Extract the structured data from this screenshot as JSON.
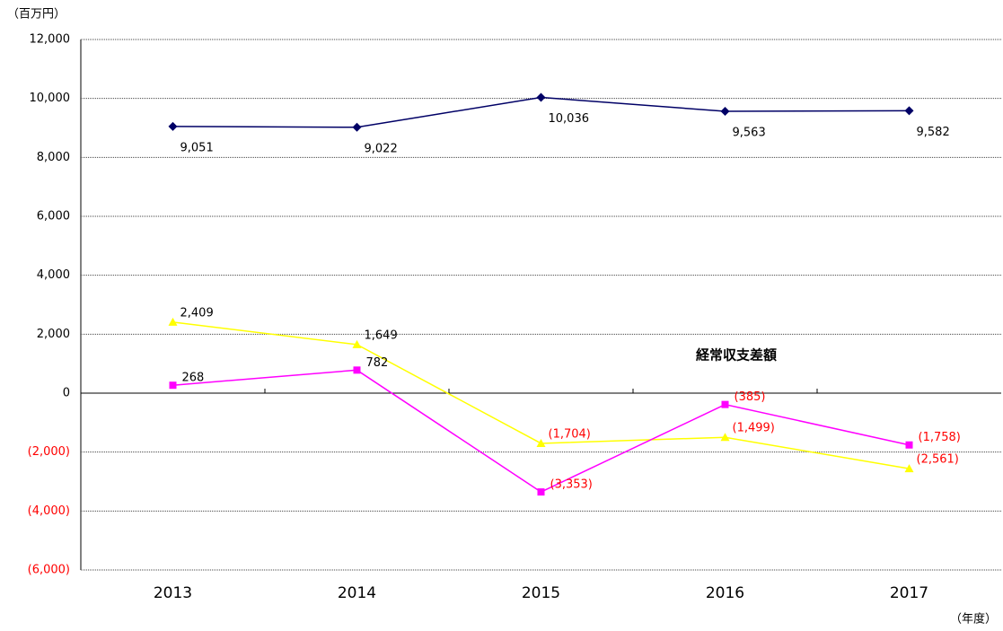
{
  "chart_data": {
    "type": "line",
    "unit_label": "（百万円）",
    "x_axis_label": "（年度）",
    "annotation": "経常収支差額",
    "categories": [
      "2013",
      "2014",
      "2015",
      "2016",
      "2017"
    ],
    "series": [
      {
        "color": "#000066",
        "marker": "diamond",
        "values": [
          9051,
          9022,
          10036,
          9563,
          9582
        ],
        "value_labels": [
          "9,051",
          "9,022",
          "10,036",
          "9,563",
          "9,582"
        ]
      },
      {
        "color": "#ffff00",
        "marker": "triangle",
        "values": [
          2409,
          1649,
          -1704,
          -1499,
          -2561
        ],
        "value_labels": [
          "2,409",
          "1,649",
          "(1,704)",
          "(1,499)",
          "(2,561)"
        ]
      },
      {
        "color": "#ff00ff",
        "marker": "square",
        "values": [
          268,
          782,
          -3353,
          -385,
          -1758
        ],
        "value_labels": [
          "268",
          "782",
          "(3,353)",
          "(385)",
          "(1,758)"
        ]
      }
    ],
    "ylim": [
      -6000,
      12000
    ],
    "yticks": [
      {
        "value": -6000,
        "label": "(6,000)"
      },
      {
        "value": -4000,
        "label": "(4,000)"
      },
      {
        "value": -2000,
        "label": "(2,000)"
      },
      0,
      {
        "value": 2000,
        "label": "2,000"
      },
      {
        "value": 4000,
        "label": "4,000"
      },
      {
        "value": 6000,
        "label": "6,000"
      },
      {
        "value": 8000,
        "label": "8,000"
      },
      {
        "value": 10000,
        "label": "10,000"
      },
      {
        "value": 12000,
        "label": "12,000"
      }
    ],
    "grid": true
  }
}
